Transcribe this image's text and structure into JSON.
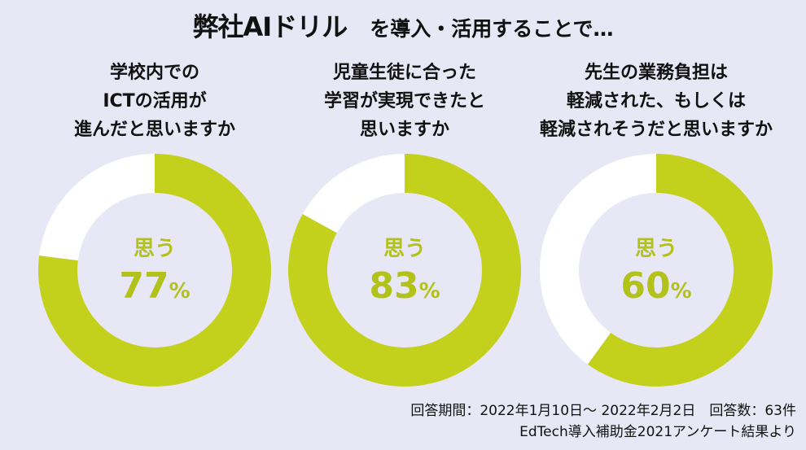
{
  "title": {
    "brand": "弊社AIドリル",
    "rest": "を導入・活用することで…"
  },
  "colors": {
    "fill": "#c3d11c",
    "remainder": "#ffffff",
    "label": "#b3c21a",
    "background": "#e7e7f5"
  },
  "chart_data": [
    {
      "type": "pie",
      "question": [
        "学校内での",
        "ICTの活用が",
        "進んだと思いますか"
      ],
      "label": "思う",
      "value": 77,
      "unit": "%"
    },
    {
      "type": "pie",
      "question": [
        "児童生徒に合った",
        "学習が実現できたと",
        "思いますか"
      ],
      "label": "思う",
      "value": 83,
      "unit": "%"
    },
    {
      "type": "pie",
      "question": [
        "先生の業務負担は",
        "軽減された、もしくは",
        "軽減されそうだと思いますか"
      ],
      "label": "思う",
      "value": 60,
      "unit": "%"
    }
  ],
  "footer": {
    "line1": "回答期間：2022年1月10日～ 2022年2月2日　回答数：63件",
    "line2": "EdTech導入補助金2021アンケート結果より"
  }
}
